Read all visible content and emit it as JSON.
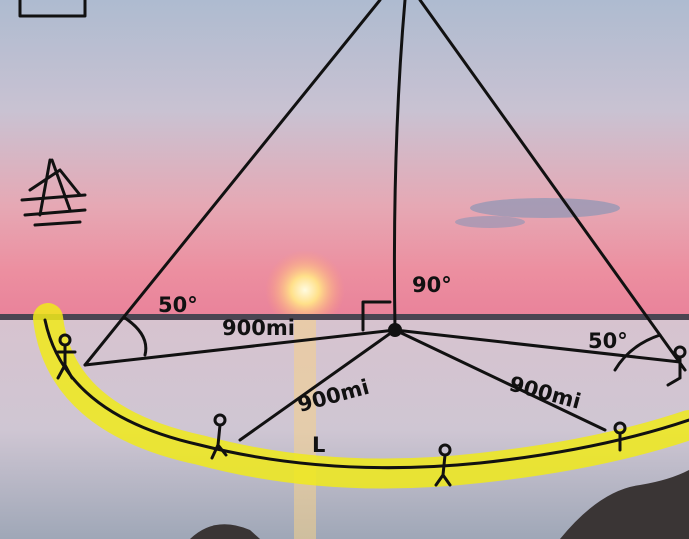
{
  "annotations": {
    "left_angle": "50°",
    "left_distance": "900mi",
    "top_angle": "90°",
    "right_angle": "50°",
    "right_distance": "900mi",
    "bottom_distance": "900mi",
    "bottom_mark": "L"
  }
}
